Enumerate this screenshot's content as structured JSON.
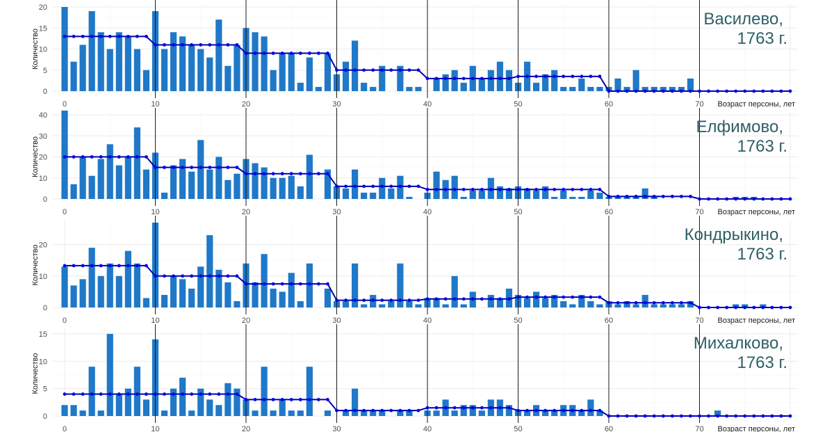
{
  "colors": {
    "bar": "#1f78c8",
    "line": "#0000aa",
    "point": "#0000ee",
    "title": "#2f5f66",
    "decade_line": "#1a1a1a"
  },
  "chart_data": [
    {
      "type": "bar",
      "title_line1": "Василево,",
      "title_line2": "1763 г.",
      "xlabel": "Возраст персоны, лет",
      "ylabel": "Количество",
      "ylim": [
        0,
        20
      ],
      "yticks": [
        0,
        5,
        10,
        15,
        20
      ],
      "xticks": [
        0,
        10,
        20,
        30,
        40,
        50,
        60,
        70
      ],
      "x_range": [
        0,
        80
      ],
      "values": [
        20,
        7,
        11,
        19,
        14,
        10,
        14,
        13,
        10,
        5,
        19,
        10,
        14,
        13,
        11,
        10,
        8,
        17,
        6,
        11,
        15,
        14,
        13,
        5,
        9,
        9,
        2,
        8,
        1,
        9,
        4,
        7,
        12,
        2,
        1,
        6,
        0,
        6,
        1,
        1,
        0,
        3,
        4,
        5,
        2,
        6,
        3,
        5,
        7,
        5,
        2,
        7,
        2,
        4,
        5,
        1,
        1,
        3,
        1,
        1,
        1,
        3,
        1,
        5,
        1,
        1,
        1,
        1,
        1,
        3,
        0,
        0,
        0,
        0,
        0,
        0,
        0,
        0,
        0,
        0,
        0
      ],
      "averages": [
        {
          "from": 0,
          "to": 9,
          "value": 13
        },
        {
          "from": 10,
          "to": 19,
          "value": 11
        },
        {
          "from": 20,
          "to": 29,
          "value": 9
        },
        {
          "from": 30,
          "to": 39,
          "value": 5
        },
        {
          "from": 40,
          "to": 49,
          "value": 3
        },
        {
          "from": 50,
          "to": 59,
          "value": 3.5
        },
        {
          "from": 60,
          "to": 69,
          "value": 0
        },
        {
          "from": 70,
          "to": 80,
          "value": 0
        }
      ]
    },
    {
      "type": "bar",
      "title_line1": "Елфимово,",
      "title_line2": "1763 г.",
      "xlabel": "Возраст персоны, лет",
      "ylabel": "Количество",
      "ylim": [
        0,
        40
      ],
      "yticks": [
        0,
        10,
        20,
        30,
        40
      ],
      "xticks": [
        0,
        10,
        20,
        30,
        40,
        50,
        60,
        70
      ],
      "x_range": [
        0,
        80
      ],
      "values": [
        42,
        7,
        20,
        11,
        19,
        26,
        16,
        20,
        34,
        14,
        22,
        3,
        16,
        19,
        13,
        28,
        14,
        20,
        9,
        12,
        19,
        17,
        15,
        10,
        10,
        11,
        6,
        21,
        0,
        14,
        6,
        5,
        14,
        3,
        3,
        10,
        5,
        11,
        1,
        0,
        3,
        13,
        9,
        11,
        1,
        4,
        4,
        10,
        6,
        5,
        6,
        5,
        4,
        6,
        1,
        4,
        1,
        1,
        4,
        3,
        1,
        1,
        1,
        1,
        5,
        1,
        0,
        0,
        0,
        0,
        0,
        0,
        0,
        0,
        1,
        1,
        1,
        0,
        0,
        0,
        0
      ],
      "averages": [
        {
          "from": 0,
          "to": 9,
          "value": 20
        },
        {
          "from": 10,
          "to": 19,
          "value": 15
        },
        {
          "from": 20,
          "to": 29,
          "value": 12
        },
        {
          "from": 30,
          "to": 39,
          "value": 6
        },
        {
          "from": 40,
          "to": 49,
          "value": 4.5
        },
        {
          "from": 50,
          "to": 59,
          "value": 4.5
        },
        {
          "from": 60,
          "to": 69,
          "value": 1.2
        },
        {
          "from": 70,
          "to": 80,
          "value": 0
        }
      ]
    },
    {
      "type": "bar",
      "title_line1": "Кондрыкино,",
      "title_line2": "1763 г.",
      "xlabel": "Возраст персоны, лет",
      "ylabel": "Количество",
      "ylim": [
        0,
        27
      ],
      "yticks": [
        0,
        10,
        20
      ],
      "xticks": [
        0,
        10,
        20,
        30,
        40,
        50,
        60,
        70
      ],
      "x_range": [
        0,
        80
      ],
      "values": [
        13,
        7,
        9,
        19,
        10,
        14,
        10,
        18,
        14,
        3,
        27,
        4,
        10,
        9,
        6,
        13,
        23,
        12,
        8,
        2,
        14,
        8,
        17,
        6,
        5,
        11,
        2,
        14,
        0,
        6,
        2,
        2,
        14,
        1,
        4,
        1,
        2,
        14,
        2,
        1,
        3,
        3,
        1,
        10,
        1,
        5,
        0,
        4,
        3,
        6,
        4,
        3,
        5,
        3,
        4,
        2,
        1,
        4,
        2,
        1,
        2,
        1,
        2,
        1,
        4,
        1,
        1,
        1,
        1,
        2,
        0,
        0,
        0,
        0,
        1,
        1,
        0,
        1,
        0,
        0,
        0
      ],
      "averages": [
        {
          "from": 0,
          "to": 9,
          "value": 13.3
        },
        {
          "from": 10,
          "to": 19,
          "value": 10
        },
        {
          "from": 20,
          "to": 29,
          "value": 7.5
        },
        {
          "from": 30,
          "to": 39,
          "value": 2.3
        },
        {
          "from": 40,
          "to": 49,
          "value": 2.7
        },
        {
          "from": 50,
          "to": 59,
          "value": 3.3
        },
        {
          "from": 60,
          "to": 69,
          "value": 1.5
        },
        {
          "from": 70,
          "to": 80,
          "value": 0
        }
      ]
    },
    {
      "type": "bar",
      "title_line1": "Михалково,",
      "title_line2": "1763 г.",
      "xlabel": "Возраст персоны, лет",
      "ylabel": "Количество",
      "ylim": [
        0,
        15.5
      ],
      "yticks": [
        0,
        5,
        10,
        15
      ],
      "xticks": [
        0,
        10,
        20,
        30,
        40,
        50,
        60,
        70
      ],
      "x_range": [
        0,
        80
      ],
      "values": [
        2,
        2,
        1,
        9,
        1,
        15,
        4,
        5,
        9,
        3,
        14,
        1,
        5,
        7,
        1,
        5,
        3,
        2,
        6,
        5,
        3,
        1,
        9,
        1,
        3,
        1,
        1,
        9,
        0,
        1,
        0,
        1,
        5,
        1,
        1,
        1,
        0,
        1,
        1,
        0,
        1,
        1,
        3,
        1,
        2,
        2,
        1,
        3,
        3,
        2,
        1,
        1,
        2,
        1,
        1,
        2,
        2,
        1,
        3,
        1,
        0,
        0,
        0,
        0,
        0,
        0,
        0,
        0,
        0,
        0,
        0,
        0,
        1,
        0,
        0,
        0,
        0,
        0,
        0,
        0,
        0
      ],
      "averages": [
        {
          "from": 0,
          "to": 9,
          "value": 4
        },
        {
          "from": 10,
          "to": 19,
          "value": 4
        },
        {
          "from": 20,
          "to": 29,
          "value": 3
        },
        {
          "from": 30,
          "to": 39,
          "value": 1
        },
        {
          "from": 40,
          "to": 49,
          "value": 1.5
        },
        {
          "from": 50,
          "to": 59,
          "value": 1
        },
        {
          "from": 60,
          "to": 69,
          "value": 0
        },
        {
          "from": 70,
          "to": 80,
          "value": 0
        }
      ]
    }
  ]
}
